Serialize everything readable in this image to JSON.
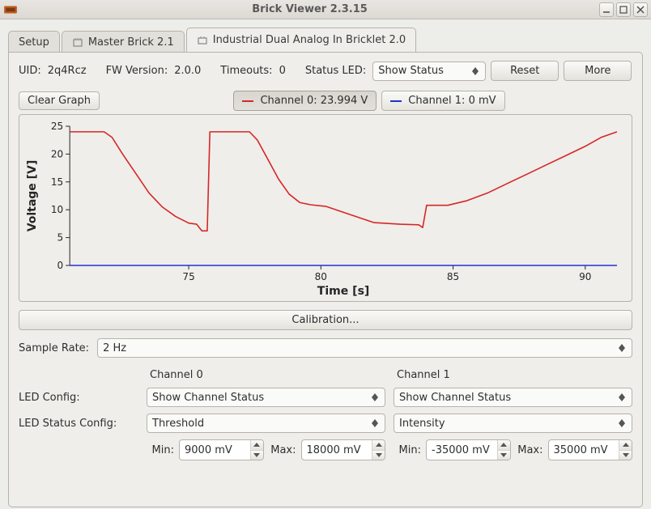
{
  "window": {
    "title": "Brick Viewer 2.3.15",
    "buttons": {
      "minimize": "minimize",
      "maximize": "maximize",
      "close": "close"
    }
  },
  "tabs": {
    "items": [
      {
        "label": "Setup",
        "active": false
      },
      {
        "label": "Master Brick 2.1",
        "active": false
      },
      {
        "label": "Industrial Dual Analog In Bricklet 2.0",
        "active": true
      }
    ]
  },
  "info": {
    "uid_label": "UID:",
    "uid": "2q4Rcz",
    "fw_label": "FW Version:",
    "fw": "2.0.0",
    "timeouts_label": "Timeouts:",
    "timeouts": "0",
    "statusled_label": "Status LED:",
    "statusled_value": "Show Status",
    "reset": "Reset",
    "more": "More"
  },
  "graph": {
    "clear_button": "Clear Graph",
    "channel0_label": "Channel 0: 23.994 V",
    "channel1_label": "Channel 1: 0 mV",
    "channel0_color": "#d62728",
    "channel1_color": "#2233cc",
    "background": "#efeeea",
    "grid_color": "#cfcdc6",
    "xlabel": "Time [s]",
    "ylabel": "Voltage [V]",
    "xlim": [
      70.5,
      91.2
    ],
    "ylim": [
      0,
      25
    ],
    "xticks": [
      75,
      80,
      85,
      90
    ],
    "yticks": [
      0,
      5,
      10,
      15,
      20,
      25
    ],
    "series": {
      "ch0": [
        [
          70.5,
          24.0
        ],
        [
          71.8,
          24.0
        ],
        [
          72.1,
          23.0
        ],
        [
          72.5,
          20.0
        ],
        [
          73.0,
          16.5
        ],
        [
          73.5,
          13.0
        ],
        [
          74.0,
          10.5
        ],
        [
          74.5,
          8.8
        ],
        [
          75.0,
          7.6
        ],
        [
          75.3,
          7.4
        ],
        [
          75.5,
          6.2
        ],
        [
          75.7,
          6.2
        ],
        [
          75.8,
          24.0
        ],
        [
          77.3,
          24.0
        ],
        [
          77.6,
          22.5
        ],
        [
          78.0,
          19.0
        ],
        [
          78.4,
          15.5
        ],
        [
          78.8,
          12.8
        ],
        [
          79.2,
          11.3
        ],
        [
          79.6,
          10.9
        ],
        [
          80.2,
          10.6
        ],
        [
          81.0,
          9.3
        ],
        [
          82.0,
          7.7
        ],
        [
          83.0,
          7.4
        ],
        [
          83.7,
          7.3
        ],
        [
          83.85,
          6.8
        ],
        [
          84.0,
          10.8
        ],
        [
          84.8,
          10.8
        ],
        [
          85.5,
          11.6
        ],
        [
          86.3,
          13.0
        ],
        [
          87.0,
          14.6
        ],
        [
          87.8,
          16.4
        ],
        [
          88.5,
          18.0
        ],
        [
          89.3,
          19.8
        ],
        [
          90.0,
          21.4
        ],
        [
          90.6,
          23.0
        ],
        [
          91.2,
          24.0
        ]
      ],
      "ch1": [
        [
          70.5,
          0.0
        ],
        [
          91.2,
          0.0
        ]
      ]
    },
    "line_width": 1.6
  },
  "calibration": {
    "label": "Calibration..."
  },
  "sample_rate": {
    "label": "Sample Rate:",
    "value": "2 Hz"
  },
  "channels": {
    "header0": "Channel 0",
    "header1": "Channel 1",
    "led_config_label": "LED Config:",
    "led_status_config_label": "LED Status Config:",
    "ch0": {
      "led_config": "Show Channel Status",
      "led_status_config": "Threshold",
      "min_label": "Min:",
      "min": "9000 mV",
      "max_label": "Max:",
      "max": "18000 mV"
    },
    "ch1": {
      "led_config": "Show Channel Status",
      "led_status_config": "Intensity",
      "min_label": "Min:",
      "min": "-35000 mV",
      "max_label": "Max:",
      "max": "35000 mV"
    }
  }
}
